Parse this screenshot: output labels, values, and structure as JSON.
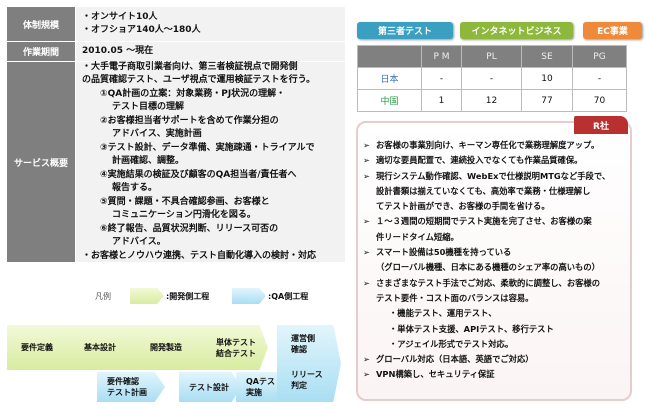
{
  "left_table": {
    "rows": [
      {
        "label": "体制規模",
        "lines": [
          "・オンサイト10人",
          "・オフショア140人～180人"
        ]
      },
      {
        "label": "作業期間",
        "lines": [
          "2010.05 ～現在"
        ]
      },
      {
        "label_lines": [
          "サービス",
          "概要"
        ],
        "lines": [
          "・大手電子商取引業者向け、第三者検証視点で開発側",
          "の品質確認テスト、ユーザ視点で運用検証テストを行う。",
          "①QA計画の立案：対象業務・PJ状況の理解・",
          "テスト目標の理解",
          "②お客様担当者サポートを含めて作業分担の",
          "アドバイス、実施計画",
          "③テスト設計、データ準備、実施疎通・トライアルで",
          "計画確認、調整。",
          "④実施結果の検証及び顧客のQA担当者/責任者へ",
          "報告する。",
          "⑤質問・課題・不具合確認参画、お客様と",
          "コミュニケーション円滑化を図る。",
          "⑥終了報告、品質状況判断、リリース可否の",
          "アドバイス。",
          "・お客様とノウハウ連携、テスト自動化導入の検討・対応"
        ]
      }
    ]
  },
  "legend": {
    "title": "凡例",
    "dev": ":開発側工程",
    "qa": ":QA側工程"
  },
  "flow": {
    "dev": [
      "要件定義",
      "基本設計",
      "開発製造",
      "単体テスト\n結合テスト"
    ],
    "qa": [
      "要件確認\nテスト計画",
      "テスト設計",
      "QAテスト\n実施"
    ],
    "final": [
      "運営側\n確認",
      "リリース\n判定"
    ]
  },
  "tags": [
    {
      "label": "第三者テスト",
      "color": "#3a9fc0"
    },
    {
      "label": "インタネットビジネス",
      "color": "#8db83c"
    },
    {
      "label": "EC事業",
      "color": "#ef8a3a"
    }
  ],
  "staff_table": {
    "headers": [
      "",
      "P M",
      "PL",
      "SE",
      "PG"
    ],
    "rows": [
      {
        "label": "日本",
        "color": "#3a6fb8",
        "values": [
          "-",
          "-",
          "10",
          "-"
        ]
      },
      {
        "label": "中国",
        "color": "#2e9a4a",
        "values": [
          "1",
          "12",
          "77",
          "70"
        ]
      }
    ]
  },
  "client": {
    "tag": "R社",
    "points": [
      {
        "b": true,
        "t": "お客様の事業別向け、キーマン専任化で業務理解度アップ。"
      },
      {
        "b": true,
        "t": "適切な要員配置で、連続投入でなくても作業品質確保。"
      },
      {
        "b": true,
        "t": "現行システム動作確認、WebExで仕様説明MTGなど手段で、"
      },
      {
        "b": false,
        "t": "設計書類は揃えていなくても、高効率で業務・仕様理解し"
      },
      {
        "b": false,
        "t": "てテスト計画ができ、お客様の手間を省ける。"
      },
      {
        "b": true,
        "t": "１～３週間の短期間でテスト実施を完了させ、お客様の案"
      },
      {
        "b": false,
        "t": "件リードタイム短縮。"
      },
      {
        "b": true,
        "t": "スマート設備は50機種を持っている"
      },
      {
        "b": false,
        "t": "（グローバル機種、日本にある機種のシェア率の高いもの）"
      },
      {
        "b": true,
        "t": "さまざまなテスト手法でご対応、柔軟的に調整し、お客様の"
      },
      {
        "b": false,
        "t": "テスト要件・コスト面のバランスは容易。"
      },
      {
        "b": false,
        "s": true,
        "t": "・機能テスト、運用テスト、"
      },
      {
        "b": false,
        "s": true,
        "t": "・単体テスト支援、APIテスト、移行テスト"
      },
      {
        "b": false,
        "s": true,
        "t": "・アジェイル形式でテスト対応。"
      },
      {
        "b": true,
        "t": "グローバル対応（日本語、英語でご対応）"
      },
      {
        "b": true,
        "t": "VPN構築し、セキュリティ保証"
      }
    ]
  }
}
